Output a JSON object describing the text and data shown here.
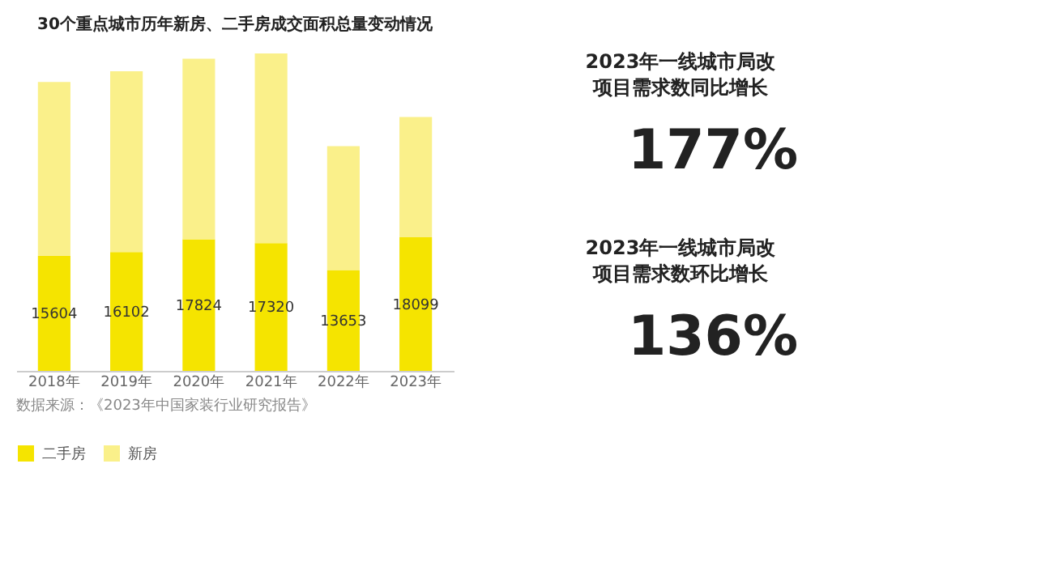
{
  "chart_data": [
    {
      "type": "bar",
      "title": "30个重点城市历年新房、二手房成交面积总量变动情况",
      "stacked": true,
      "legend": "bottom",
      "tick_labels": "x",
      "categories": [
        "2018年",
        "2019年",
        "2020年",
        "2021年",
        "2022年",
        "2023年"
      ],
      "series": [
        {
          "name": "二手房",
          "color": "#f5e400",
          "values": [
            15604,
            16102,
            17824,
            17320,
            13653,
            18099
          ],
          "value_labels": [
            "15604",
            "16102",
            "17824",
            "17320",
            "13653",
            "18099"
          ]
        },
        {
          "name": "新房",
          "color": "#faf08a",
          "values": [
            23550,
            24500,
            24500,
            25700,
            16800,
            16300
          ]
        }
      ],
      "annotations": [
        "数据来源：《2023年中国家装行业研究报告》"
      ]
    },
    {
      "type": "other",
      "title": "2023年一线城市局改项目需求数同比增长",
      "annotations": [
        "177%"
      ]
    },
    {
      "type": "other",
      "title": "2023年一线城市局改项目需求数环比增长",
      "annotations": [
        "136%"
      ]
    }
  ]
}
